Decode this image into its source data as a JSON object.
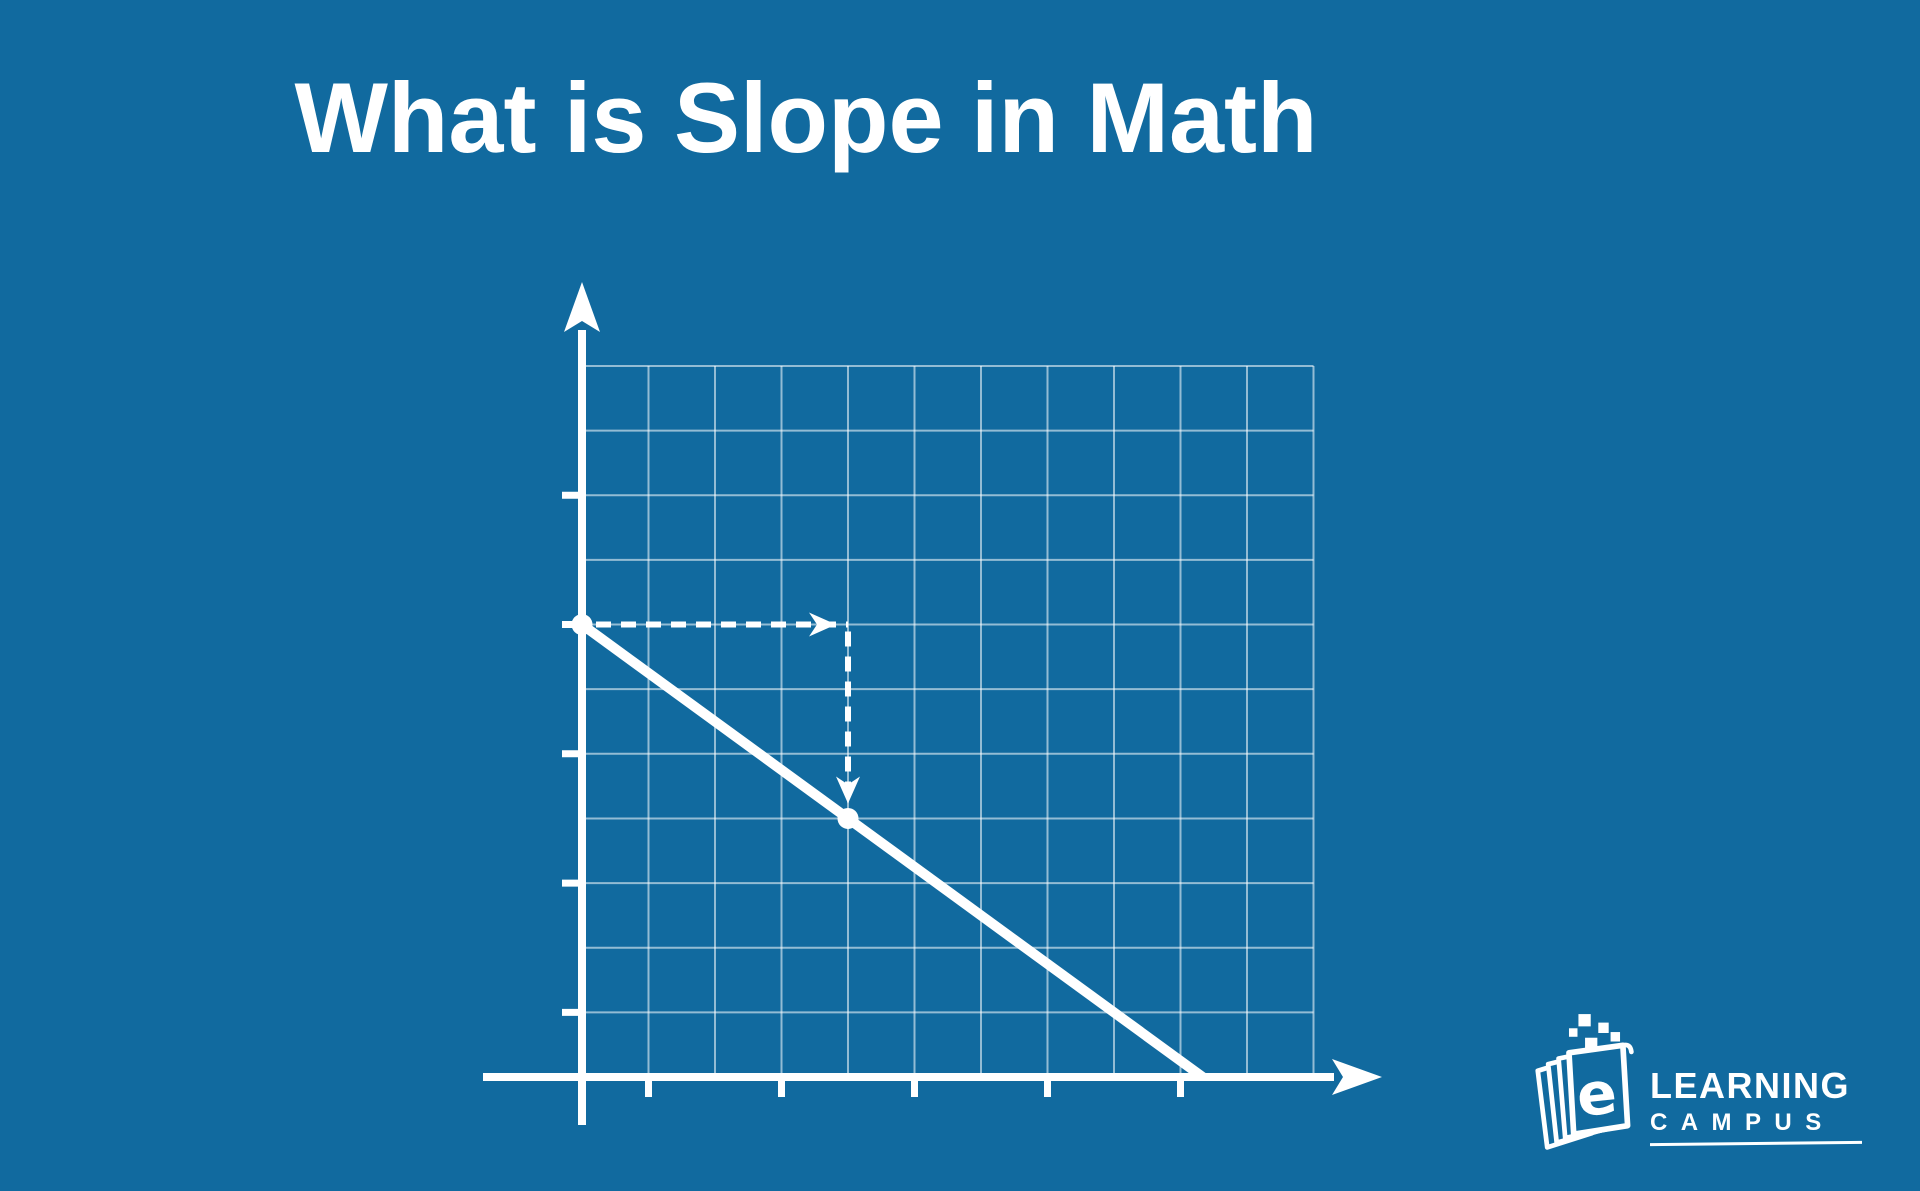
{
  "page": {
    "background_color": "#116a9f",
    "title": "What is Slope in Math",
    "title_color": "#ffffff"
  },
  "logo": {
    "icon": "book-with-e-and-pixel-squares",
    "letter_e": "e",
    "brand_top": "LEARNING",
    "brand_bottom": "CAMPUS",
    "color": "#ffffff"
  },
  "chart_data": {
    "type": "line",
    "title": "",
    "xlabel": "",
    "ylabel": "",
    "description": "First-quadrant coordinate grid illustrating slope: a line falling 3 units for every 4 units of horizontal run, shown with dashed run and fall arrows between two marked points.",
    "grid": {
      "columns": 11,
      "rows": 11,
      "grid_on": true
    },
    "axes": {
      "arrows": true,
      "x_ticks_at": [
        1,
        3,
        5,
        7,
        9
      ],
      "y_ticks_at": [
        1,
        3,
        5,
        7,
        9
      ]
    },
    "points": [
      {
        "x": 0,
        "y": 7
      },
      {
        "x": 4,
        "y": 4
      }
    ],
    "line": {
      "from": {
        "x": 0,
        "y": 7
      },
      "through": {
        "x": 4,
        "y": 4
      },
      "extended_to_y": 0
    },
    "slope": {
      "run": 4,
      "rise": -3,
      "value": -0.75
    },
    "run_arrow": {
      "from": {
        "x": 0,
        "y": 7
      },
      "to": {
        "x": 4,
        "y": 7
      },
      "style": "dashed"
    },
    "rise_arrow": {
      "from": {
        "x": 4,
        "y": 7
      },
      "to": {
        "x": 4,
        "y": 4.2
      },
      "style": "dashed"
    },
    "colors": {
      "axis": "#ffffff",
      "grid_line": "#ffffff",
      "grid_opacity": 0.55,
      "slope_line": "#ffffff",
      "point": "#ffffff",
      "dashed_arrow": "#ffffff"
    }
  }
}
